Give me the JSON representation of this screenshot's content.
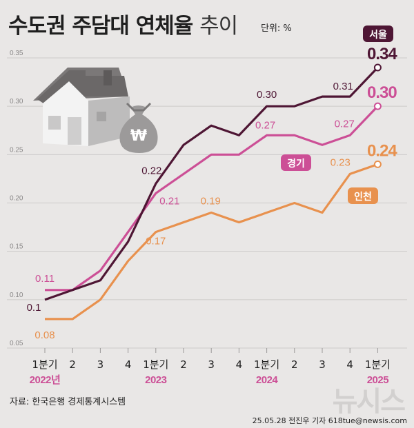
{
  "header": {
    "title_main": "수도권 주담대 연체율",
    "title_sub": "추이",
    "unit": "단위: %"
  },
  "footer": {
    "source": "자료: 한국은행 경제통계시스템",
    "credit": "25.05.28 전진우 기자 618tue@newsis.com",
    "logo": "뉴시스"
  },
  "colors": {
    "seoul": "#4e1634",
    "gyeonggi": "#cc4f96",
    "incheon": "#e8914e",
    "background": "#e9e7e6",
    "grid": "#cdcbca"
  },
  "chart_data": {
    "type": "line",
    "title": "수도권 주담대 연체율 추이",
    "unit": "%",
    "ylim": [
      0.05,
      0.35
    ],
    "yticks": [
      "0.05",
      "0.10",
      "0.15",
      "0.20",
      "0.25",
      "0.30",
      "0.35"
    ],
    "x": [
      "1분기",
      "2",
      "3",
      "4",
      "1분기",
      "2",
      "3",
      "4",
      "1분기",
      "2",
      "3",
      "4",
      "1분기"
    ],
    "years": [
      {
        "label": "2022년",
        "index": 0
      },
      {
        "label": "2023",
        "index": 4
      },
      {
        "label": "2024",
        "index": 8
      },
      {
        "label": "2025",
        "index": 12
      }
    ],
    "series": [
      {
        "name": "서울",
        "key": "seoul",
        "values": [
          0.1,
          0.11,
          0.12,
          0.16,
          0.22,
          0.26,
          0.28,
          0.27,
          0.3,
          0.3,
          0.31,
          0.31,
          0.34
        ],
        "labels": [
          {
            "index": 0,
            "text": "0.1"
          },
          {
            "index": 4,
            "text": "0.22"
          },
          {
            "index": 8,
            "text": "0.30"
          },
          {
            "index": 11,
            "text": "0.31"
          },
          {
            "index": 12,
            "text": "0.34"
          }
        ]
      },
      {
        "name": "경기",
        "key": "gyeonggi",
        "values": [
          0.11,
          0.11,
          0.13,
          0.17,
          0.21,
          0.23,
          0.25,
          0.25,
          0.27,
          0.27,
          0.26,
          0.27,
          0.3
        ],
        "labels": [
          {
            "index": 0,
            "text": "0.11"
          },
          {
            "index": 4,
            "text": "0.21"
          },
          {
            "index": 8,
            "text": "0.27"
          },
          {
            "index": 11,
            "text": "0.27"
          },
          {
            "index": 12,
            "text": "0.30"
          }
        ]
      },
      {
        "name": "인천",
        "key": "incheon",
        "values": [
          0.08,
          0.08,
          0.1,
          0.14,
          0.17,
          0.18,
          0.19,
          0.18,
          0.19,
          0.2,
          0.19,
          0.23,
          0.24
        ],
        "labels": [
          {
            "index": 0,
            "text": "0.08"
          },
          {
            "index": 4,
            "text": "0.17"
          },
          {
            "index": 6,
            "text": "0.19"
          },
          {
            "index": 11,
            "text": "0.23"
          },
          {
            "index": 12,
            "text": "0.24"
          }
        ]
      }
    ]
  }
}
